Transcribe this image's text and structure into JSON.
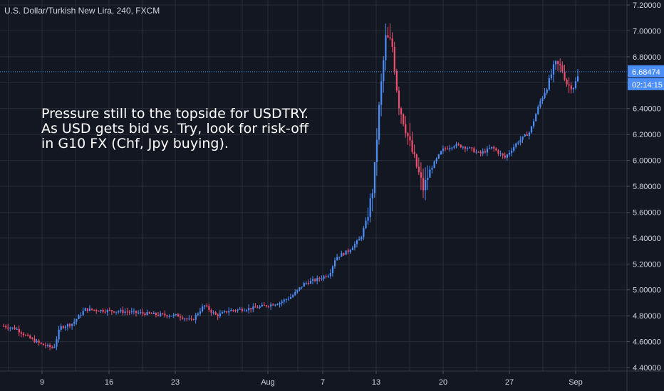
{
  "chart_data": {
    "type": "candlestick",
    "title": "U.S. Dollar/Turkish New Lira, 240, FXCM",
    "symbol": "USDTRY",
    "interval": "240",
    "source": "FXCM",
    "y_ticks": [
      "7.20000",
      "7.00000",
      "6.80000",
      "6.60000",
      "6.40000",
      "6.20000",
      "6.00000",
      "5.80000",
      "5.60000",
      "5.40000",
      "5.20000",
      "5.00000",
      "4.80000",
      "4.60000",
      "4.40000"
    ],
    "x_ticks": [
      "9",
      "16",
      "23",
      "Aug",
      "7",
      "13",
      "20",
      "27",
      "Sep"
    ],
    "ylim": [
      4.4,
      7.2
    ],
    "grid": true,
    "last_price": "6.68474",
    "countdown": "02:14:15",
    "colors": {
      "background": "#131722",
      "grid": "#2a2e39",
      "up": "#4c8ef7",
      "down": "#f0506e",
      "price_line": "#4c8ef7",
      "text": "#d1d4dc"
    },
    "price_path": [
      {
        "t": 0,
        "p": 4.72
      },
      {
        "t": 1,
        "p": 4.7
      },
      {
        "t": 2,
        "p": 4.63
      },
      {
        "t": 3,
        "p": 4.58
      },
      {
        "t": 4,
        "p": 4.55
      },
      {
        "t": 4.5,
        "p": 4.71
      },
      {
        "t": 5.5,
        "p": 4.74
      },
      {
        "t": 6.5,
        "p": 4.85
      },
      {
        "t": 8,
        "p": 4.84
      },
      {
        "t": 10,
        "p": 4.83
      },
      {
        "t": 12,
        "p": 4.81
      },
      {
        "t": 14,
        "p": 4.8
      },
      {
        "t": 15,
        "p": 4.76
      },
      {
        "t": 16,
        "p": 4.88
      },
      {
        "t": 17,
        "p": 4.8
      },
      {
        "t": 18,
        "p": 4.84
      },
      {
        "t": 20,
        "p": 4.86
      },
      {
        "t": 22,
        "p": 4.9
      },
      {
        "t": 23,
        "p": 4.95
      },
      {
        "t": 24,
        "p": 5.05
      },
      {
        "t": 25,
        "p": 5.08
      },
      {
        "t": 26,
        "p": 5.12
      },
      {
        "t": 26.5,
        "p": 5.25
      },
      {
        "t": 27.5,
        "p": 5.3
      },
      {
        "t": 28.5,
        "p": 5.4
      },
      {
        "t": 29,
        "p": 5.55
      },
      {
        "t": 29.5,
        "p": 5.8
      },
      {
        "t": 30,
        "p": 6.45
      },
      {
        "t": 30.5,
        "p": 6.95
      },
      {
        "t": 31,
        "p": 6.9
      },
      {
        "t": 31.5,
        "p": 6.45
      },
      {
        "t": 32.5,
        "p": 6.1
      },
      {
        "t": 33.5,
        "p": 5.78
      },
      {
        "t": 34,
        "p": 5.92
      },
      {
        "t": 35,
        "p": 6.08
      },
      {
        "t": 36,
        "p": 6.12
      },
      {
        "t": 37,
        "p": 6.1
      },
      {
        "t": 38,
        "p": 6.05
      },
      {
        "t": 39,
        "p": 6.1
      },
      {
        "t": 40,
        "p": 6.02
      },
      {
        "t": 41,
        "p": 6.14
      },
      {
        "t": 42,
        "p": 6.22
      },
      {
        "t": 42.8,
        "p": 6.45
      },
      {
        "t": 43.5,
        "p": 6.6
      },
      {
        "t": 44,
        "p": 6.75
      },
      {
        "t": 44.5,
        "p": 6.72
      },
      {
        "t": 45,
        "p": 6.58
      },
      {
        "t": 45.5,
        "p": 6.57
      },
      {
        "t": 46,
        "p": 6.68
      }
    ]
  },
  "annotation": {
    "lines": [
      "Pressure still to the topside for USDTRY.",
      "As USD gets bid vs. Try, look for risk-off",
      "in G10 FX (Chf, Jpy buying)."
    ]
  }
}
